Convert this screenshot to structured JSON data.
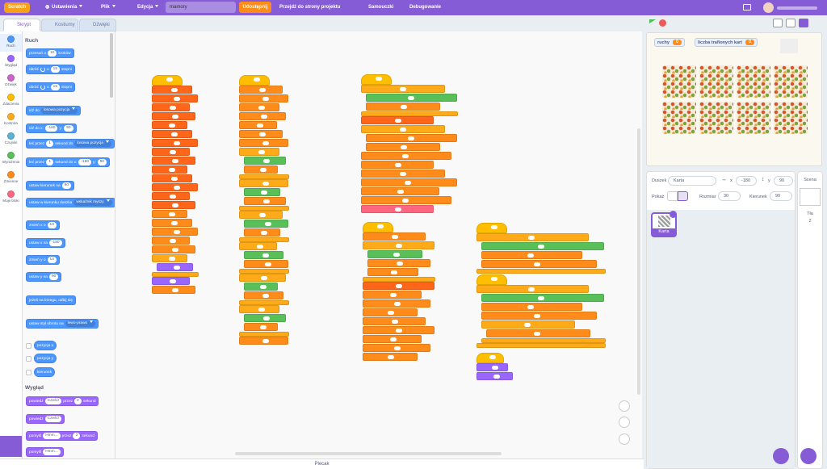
{
  "menu": {
    "logo": "Scratch",
    "items": [
      "Ustawienia",
      "Plik",
      "Edycja"
    ],
    "project_title": "mamory",
    "share": "Udostępnij",
    "project_page": "Przejdź do strony projektu",
    "tutorials": "Samouczki",
    "debug": "Debugowanie"
  },
  "tabs": [
    "Skrypt",
    "Kostiumy",
    "Dźwięki"
  ],
  "categories": [
    {
      "name": "Ruch",
      "color": "#4c97ff"
    },
    {
      "name": "Wygląd",
      "color": "#9966ff"
    },
    {
      "name": "Dźwięk",
      "color": "#cf63cf"
    },
    {
      "name": "Zdarzenia",
      "color": "#ffbf00"
    },
    {
      "name": "Kontrola",
      "color": "#ffab19"
    },
    {
      "name": "Czujniki",
      "color": "#5cb1d6"
    },
    {
      "name": "Wyrażenia",
      "color": "#59c059"
    },
    {
      "name": "Zmienne",
      "color": "#ff8c1a"
    },
    {
      "name": "Moje bloki",
      "color": "#ff6680"
    }
  ],
  "palette": {
    "sections": [
      {
        "title": "Ruch",
        "color": "#4c97ff",
        "blocks": [
          {
            "parts": [
              "przesuń o",
              {
                "input": "10"
              },
              "kroków"
            ]
          },
          {
            "parts": [
              "obróć",
              {
                "icon": "cw"
              },
              "o",
              {
                "input": "15"
              },
              "stopni"
            ]
          },
          {
            "parts": [
              "obróć",
              {
                "icon": "ccw"
              },
              "o",
              {
                "input": "15"
              },
              "stopni"
            ]
          },
          {
            "parts": [
              "idź do",
              {
                "menu": "losowa pozycja"
              }
            ]
          },
          {
            "parts": [
              "idź do x:",
              {
                "input": "-180"
              },
              "y:",
              {
                "input": "90"
              }
            ]
          },
          {
            "parts": [
              "leć przez",
              {
                "input": "1"
              },
              "sekund do",
              {
                "menu": "losowa pozycja"
              }
            ]
          },
          {
            "parts": [
              "leć przez",
              {
                "input": "1"
              },
              "sekund do x:",
              {
                "input": "-180"
              },
              "y:",
              {
                "input": "90"
              }
            ]
          },
          {
            "parts": [
              "ustaw kierunek na",
              {
                "input": "90"
              }
            ]
          },
          {
            "parts": [
              "ustaw w kierunku duszka",
              {
                "menu": "wskaźnik myszy"
              }
            ]
          },
          {
            "parts": [
              "zmień x o",
              {
                "input": "10"
              }
            ]
          },
          {
            "parts": [
              "ustaw x na",
              {
                "input": "-180"
              }
            ]
          },
          {
            "parts": [
              "zmień y o",
              {
                "input": "10"
              }
            ]
          },
          {
            "parts": [
              "ustaw y na",
              {
                "input": "90"
              }
            ]
          },
          {
            "parts": [
              "jeżeli na brzegu, odbij się"
            ]
          },
          {
            "parts": [
              "ustaw styl obrotu na",
              {
                "menu": "lewo-prawo"
              }
            ]
          },
          {
            "parts": [
              "pozycja x"
            ],
            "checkbox": true
          },
          {
            "parts": [
              "pozycja y"
            ],
            "checkbox": true
          },
          {
            "parts": [
              "kierunek"
            ],
            "checkbox": true
          }
        ]
      },
      {
        "title": "Wygląd",
        "color": "#9966ff",
        "blocks": [
          {
            "parts": [
              "powiedz",
              {
                "input": "Cześć!"
              },
              "przez",
              {
                "input": "2"
              },
              "sekund"
            ]
          },
          {
            "parts": [
              "powiedz",
              {
                "input": "Cześć!"
              }
            ]
          },
          {
            "parts": [
              "pomyśl",
              {
                "input": "Hmm..."
              },
              "przez",
              {
                "input": "2"
              },
              "sekund"
            ]
          },
          {
            "parts": [
              "pomyśl",
              {
                "input": "Hmm..."
              }
            ]
          }
        ]
      }
    ]
  },
  "stage": {
    "monitors": [
      {
        "label": "ruchy",
        "value": 0
      },
      {
        "label": "liczba trafionych kart",
        "value": 0
      }
    ]
  },
  "sprite_info": {
    "sprite_label": "Duszek",
    "sprite_name": "Karta",
    "x_label": "x",
    "x": -180,
    "y_label": "y",
    "y": 90,
    "show_label": "Pokaż",
    "size_label": "Rozmiar",
    "size": 30,
    "direction_label": "Kierunek",
    "direction": 90
  },
  "sprites": [
    "Karta"
  ],
  "stage_pane": {
    "title": "Scena",
    "backdrops_label": "Tła",
    "backdrops_count": 2
  },
  "backpack": "Plecak"
}
